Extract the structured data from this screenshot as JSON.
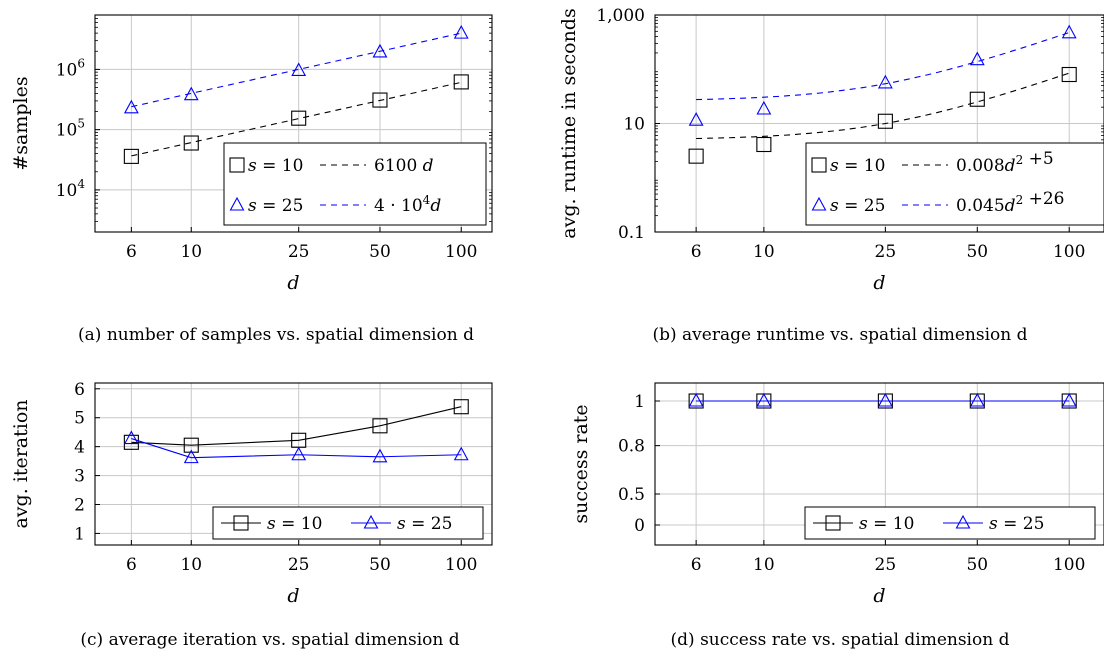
{
  "chart_data": [
    {
      "id": "a",
      "type": "line",
      "caption": "(a) number of samples vs. spatial dimension d",
      "xlabel": "d",
      "ylabel": "#samples",
      "x_scale": "log",
      "y_scale": "log",
      "x": [
        6,
        10,
        25,
        50,
        100
      ],
      "x_ticks": [
        6,
        10,
        25,
        50,
        100
      ],
      "x_tick_labels": [
        "6",
        "10",
        "25",
        "50",
        "100"
      ],
      "xlim": [
        4.4,
        130
      ],
      "ylim": [
        2000,
        8000000
      ],
      "y_ticks": [
        10000,
        100000,
        1000000
      ],
      "y_tick_labels": [
        [
          "10",
          "4"
        ],
        [
          "10",
          "5"
        ],
        [
          "10",
          "6"
        ]
      ],
      "grid": true,
      "legend_position": "bottom-right",
      "series": [
        {
          "name": "s = 10",
          "marker": "square",
          "color": "#000000",
          "style": "markers",
          "values": [
            36000,
            60000,
            155000,
            310000,
            620000
          ]
        },
        {
          "name": "s = 25",
          "marker": "triangle",
          "color": "#0000ff",
          "style": "markers",
          "values": [
            230000,
            380000,
            960000,
            1950000,
            4000000
          ]
        },
        {
          "name": "6100 d",
          "color": "#000000",
          "style": "dashed",
          "fit": {
            "kind": "linear",
            "a": 6100,
            "b": 0
          }
        },
        {
          "name": "4 · 10^4 d",
          "color": "#0000ff",
          "style": "dashed",
          "fit": {
            "kind": "linear",
            "a": 40000,
            "b": 0
          }
        }
      ],
      "legend": [
        {
          "marker": "square",
          "color": "#000000",
          "label": "s = 10",
          "line_label": "6100 d"
        },
        {
          "marker": "triangle",
          "color": "#0000ff",
          "label": "s = 25",
          "line_label": "4 · 10^4 d"
        }
      ]
    },
    {
      "id": "b",
      "type": "line",
      "caption": "(b) average runtime vs. spatial dimension d",
      "xlabel": "d",
      "ylabel": "avg. runtime in seconds",
      "x_scale": "log",
      "y_scale": "log",
      "x": [
        6,
        10,
        25,
        50,
        100
      ],
      "x_ticks": [
        6,
        10,
        25,
        50,
        100
      ],
      "x_tick_labels": [
        "6",
        "10",
        "25",
        "50",
        "100"
      ],
      "xlim": [
        4.4,
        130
      ],
      "ylim": [
        0.1,
        1000
      ],
      "y_ticks": [
        0.1,
        10,
        1000
      ],
      "y_tick_labels": [
        "0.1",
        "10",
        "1,000"
      ],
      "grid": true,
      "legend_position": "bottom-right",
      "series": [
        {
          "name": "s = 10",
          "marker": "square",
          "color": "#000000",
          "style": "markers",
          "values": [
            2.5,
            4.1,
            11,
            28,
            80
          ]
        },
        {
          "name": "s = 25",
          "marker": "triangle",
          "color": "#0000ff",
          "style": "markers",
          "values": [
            11.5,
            18.5,
            56,
            150,
            470
          ]
        },
        {
          "name": "0.008d^2+5",
          "color": "#000000",
          "style": "dashed",
          "fit": {
            "kind": "quadratic",
            "a": 0.008,
            "b": 5
          }
        },
        {
          "name": "0.045d^2+26",
          "color": "#0000ff",
          "style": "dashed",
          "fit": {
            "kind": "quadratic",
            "a": 0.045,
            "b": 26
          }
        }
      ],
      "legend": [
        {
          "marker": "square",
          "color": "#000000",
          "label": "s = 10",
          "line_label": "0.008d^2 +5"
        },
        {
          "marker": "triangle",
          "color": "#0000ff",
          "label": "s = 25",
          "line_label": "0.045d^2 +26"
        }
      ]
    },
    {
      "id": "c",
      "type": "line",
      "caption": "(c) average iteration vs. spatial dimension d",
      "xlabel": "d",
      "ylabel": "avg. iteration",
      "x_scale": "log",
      "y_scale": "linear",
      "x": [
        6,
        10,
        25,
        50,
        100
      ],
      "x_ticks": [
        6,
        10,
        25,
        50,
        100
      ],
      "x_tick_labels": [
        "6",
        "10",
        "25",
        "50",
        "100"
      ],
      "xlim": [
        4.4,
        130
      ],
      "ylim": [
        0.6,
        6.2
      ],
      "y_ticks": [
        1,
        2,
        3,
        4,
        5,
        6
      ],
      "y_tick_labels": [
        "1",
        "2",
        "3",
        "4",
        "5",
        "6"
      ],
      "grid": true,
      "legend_position": "bottom-right",
      "series": [
        {
          "name": "s = 10",
          "marker": "square",
          "color": "#000000",
          "style": "solid",
          "values": [
            4.15,
            4.05,
            4.22,
            4.72,
            5.38
          ]
        },
        {
          "name": "s = 25",
          "marker": "triangle",
          "color": "#0000ff",
          "style": "solid",
          "values": [
            4.28,
            3.62,
            3.72,
            3.65,
            3.72
          ]
        }
      ],
      "legend": [
        {
          "marker": "square",
          "color": "#000000",
          "label": "s = 10"
        },
        {
          "marker": "triangle",
          "color": "#0000ff",
          "label": "s = 25"
        }
      ]
    },
    {
      "id": "d",
      "type": "line",
      "caption": "(d) success rate vs. spatial dimension d",
      "xlabel": "d",
      "ylabel": "success rate",
      "x_scale": "log",
      "y_scale": "power",
      "x": [
        6,
        10,
        25,
        50,
        100
      ],
      "x_ticks": [
        6,
        10,
        25,
        50,
        100
      ],
      "x_tick_labels": [
        "6",
        "10",
        "25",
        "50",
        "100"
      ],
      "xlim": [
        4.4,
        130
      ],
      "ylim": [
        0,
        1
      ],
      "y_ticks": [
        0,
        0.5,
        0.8,
        1
      ],
      "y_tick_labels": [
        "0",
        "0.5",
        "0.8",
        "1"
      ],
      "grid": true,
      "legend_position": "bottom-right",
      "series": [
        {
          "name": "s = 10",
          "marker": "square",
          "color": "#000000",
          "style": "solid",
          "values": [
            1,
            1,
            1,
            1,
            1
          ]
        },
        {
          "name": "s = 25",
          "marker": "triangle",
          "color": "#0000ff",
          "style": "solid",
          "values": [
            1,
            1,
            1,
            1,
            1
          ]
        }
      ],
      "legend": [
        {
          "marker": "square",
          "color": "#000000",
          "label": "s = 10"
        },
        {
          "marker": "triangle",
          "color": "#0000ff",
          "label": "s = 25"
        }
      ]
    }
  ]
}
